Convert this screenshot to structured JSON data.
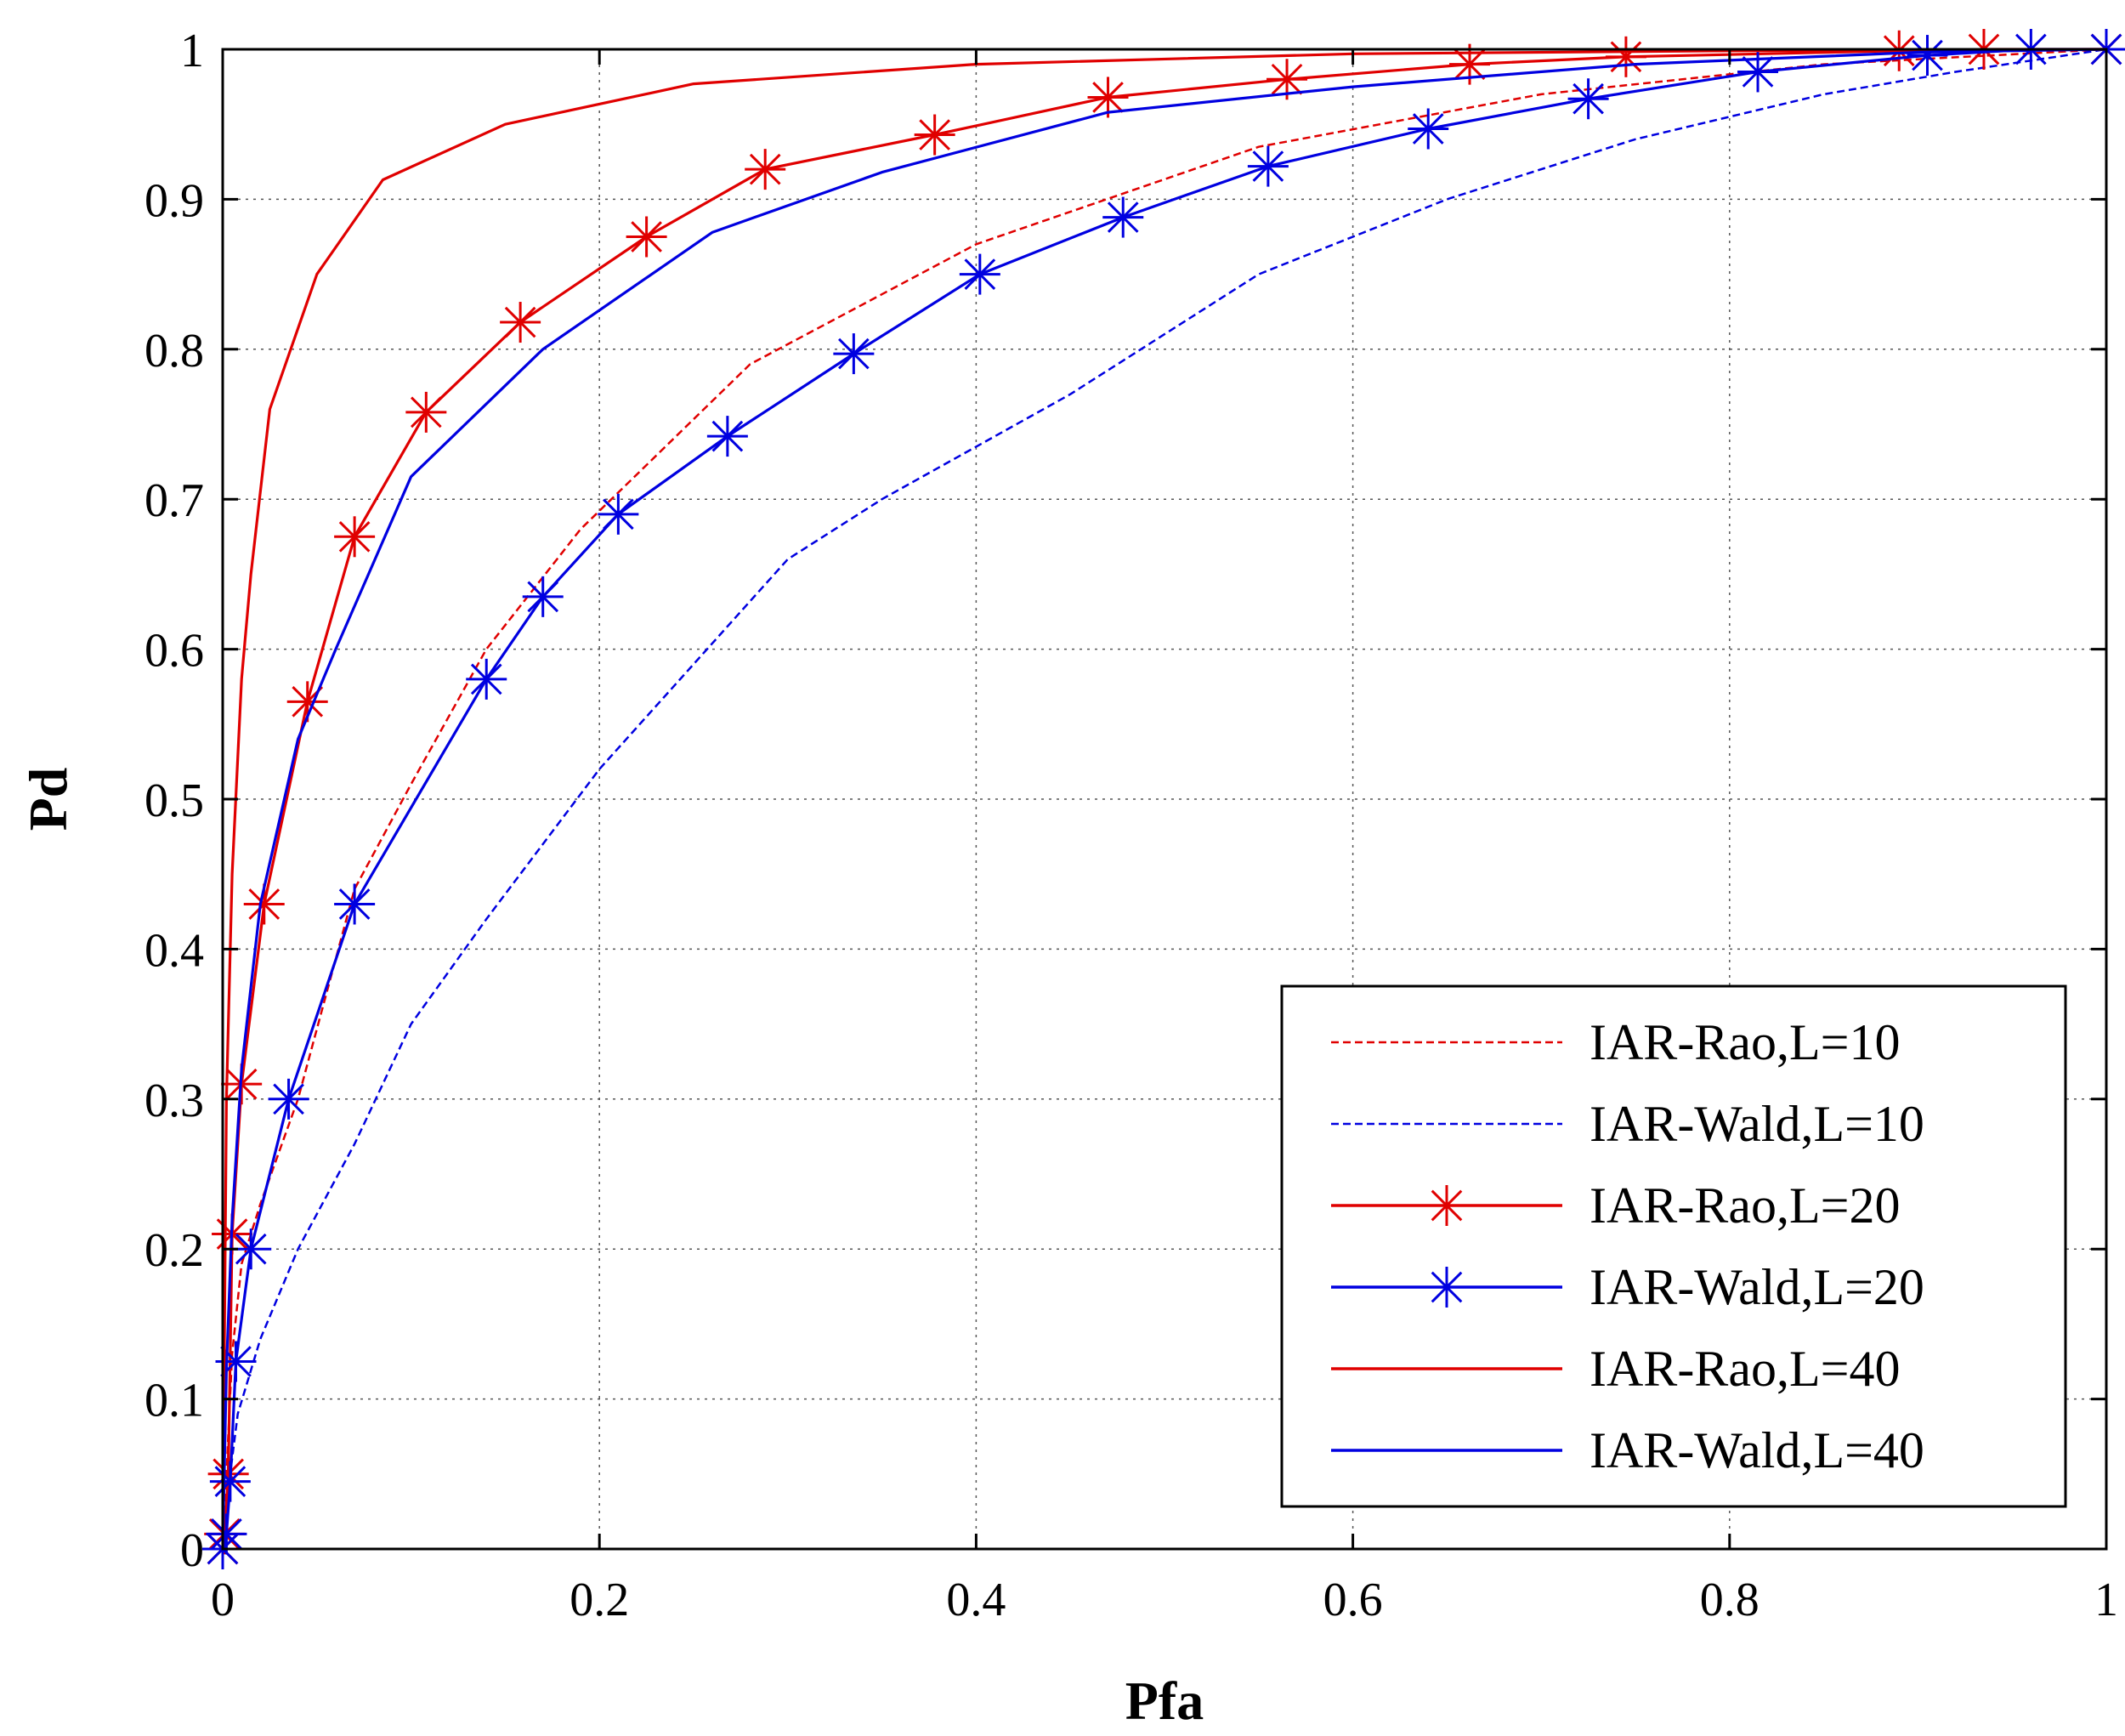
{
  "chart_data": {
    "type": "line",
    "title": "",
    "xlabel": "Pfa",
    "ylabel": "Pd",
    "xlim": [
      0,
      1
    ],
    "ylim": [
      0,
      1
    ],
    "xticks": [
      0,
      0.2,
      0.4,
      0.6,
      0.8,
      1
    ],
    "yticks": [
      0,
      0.1,
      0.2,
      0.3,
      0.4,
      0.5,
      0.6,
      0.7,
      0.8,
      0.9,
      1
    ],
    "xtick_labels": [
      "0",
      "0.2",
      "0.4",
      "0.6",
      "0.8",
      "1"
    ],
    "ytick_labels": [
      "0",
      "0.1",
      "0.2",
      "0.3",
      "0.4",
      "0.5",
      "0.6",
      "0.7",
      "0.8",
      "0.9",
      "1"
    ],
    "grid": true,
    "legend_position": "bottom-right",
    "series": [
      {
        "name": "IAR-Rao,L=10",
        "color": "#e00000",
        "style": "dashed",
        "marker": "none",
        "x": [
          0,
          0.002,
          0.005,
          0.01,
          0.02,
          0.04,
          0.07,
          0.1,
          0.14,
          0.19,
          0.28,
          0.4,
          0.55,
          0.7,
          0.85,
          1.0
        ],
        "y": [
          0,
          0.05,
          0.13,
          0.19,
          0.23,
          0.3,
          0.44,
          0.51,
          0.6,
          0.68,
          0.79,
          0.87,
          0.935,
          0.97,
          0.99,
          1.0
        ]
      },
      {
        "name": "IAR-Wald,L=10",
        "color": "#0000e0",
        "style": "dashed",
        "marker": "none",
        "x": [
          0,
          0.003,
          0.008,
          0.02,
          0.04,
          0.07,
          0.1,
          0.14,
          0.2,
          0.3,
          0.35,
          0.45,
          0.55,
          0.65,
          0.75,
          0.85,
          0.92,
          1.0
        ],
        "y": [
          0,
          0.04,
          0.09,
          0.14,
          0.2,
          0.27,
          0.35,
          0.42,
          0.52,
          0.66,
          0.7,
          0.77,
          0.85,
          0.9,
          0.94,
          0.97,
          0.985,
          1.0
        ]
      },
      {
        "name": "IAR-Rao,L=20",
        "color": "#e00000",
        "style": "solid",
        "marker": "asterisk",
        "x": [
          0,
          0.001,
          0.003,
          0.005,
          0.01,
          0.022,
          0.045,
          0.07,
          0.108,
          0.158,
          0.225,
          0.288,
          0.378,
          0.47,
          0.565,
          0.662,
          0.745,
          0.89,
          0.935,
          1.0
        ],
        "y": [
          0,
          0.01,
          0.05,
          0.21,
          0.31,
          0.43,
          0.565,
          0.675,
          0.758,
          0.818,
          0.875,
          0.92,
          0.943,
          0.968,
          0.98,
          0.99,
          0.995,
          0.999,
          1.0,
          1.0
        ]
      },
      {
        "name": "IAR-Wald,L=20",
        "color": "#0000e0",
        "style": "solid",
        "marker": "asterisk",
        "x": [
          0,
          0.002,
          0.004,
          0.007,
          0.015,
          0.035,
          0.07,
          0.14,
          0.17,
          0.21,
          0.268,
          0.335,
          0.402,
          0.478,
          0.555,
          0.64,
          0.725,
          0.815,
          0.905,
          0.96,
          1.0
        ],
        "y": [
          0,
          0.01,
          0.045,
          0.125,
          0.2,
          0.3,
          0.43,
          0.58,
          0.635,
          0.69,
          0.742,
          0.797,
          0.85,
          0.888,
          0.922,
          0.947,
          0.967,
          0.985,
          0.996,
          1.0,
          1.0
        ]
      },
      {
        "name": "IAR-Rao,L=40",
        "color": "#e00000",
        "style": "solid",
        "marker": "none",
        "x": [
          0,
          0.002,
          0.005,
          0.01,
          0.015,
          0.025,
          0.05,
          0.085,
          0.15,
          0.25,
          0.4,
          0.6,
          0.8,
          1.0
        ],
        "y": [
          0,
          0.3,
          0.45,
          0.58,
          0.65,
          0.76,
          0.85,
          0.913,
          0.95,
          0.977,
          0.99,
          0.997,
          0.999,
          1.0
        ]
      },
      {
        "name": "IAR-Wald,L=40",
        "color": "#0000e0",
        "style": "solid",
        "marker": "none",
        "x": [
          0,
          0.002,
          0.005,
          0.01,
          0.02,
          0.04,
          0.06,
          0.1,
          0.17,
          0.26,
          0.35,
          0.47,
          0.6,
          0.75,
          0.9,
          1.0
        ],
        "y": [
          0,
          0.12,
          0.22,
          0.32,
          0.43,
          0.54,
          0.6,
          0.715,
          0.8,
          0.878,
          0.918,
          0.958,
          0.975,
          0.99,
          0.998,
          1.0
        ]
      }
    ]
  }
}
